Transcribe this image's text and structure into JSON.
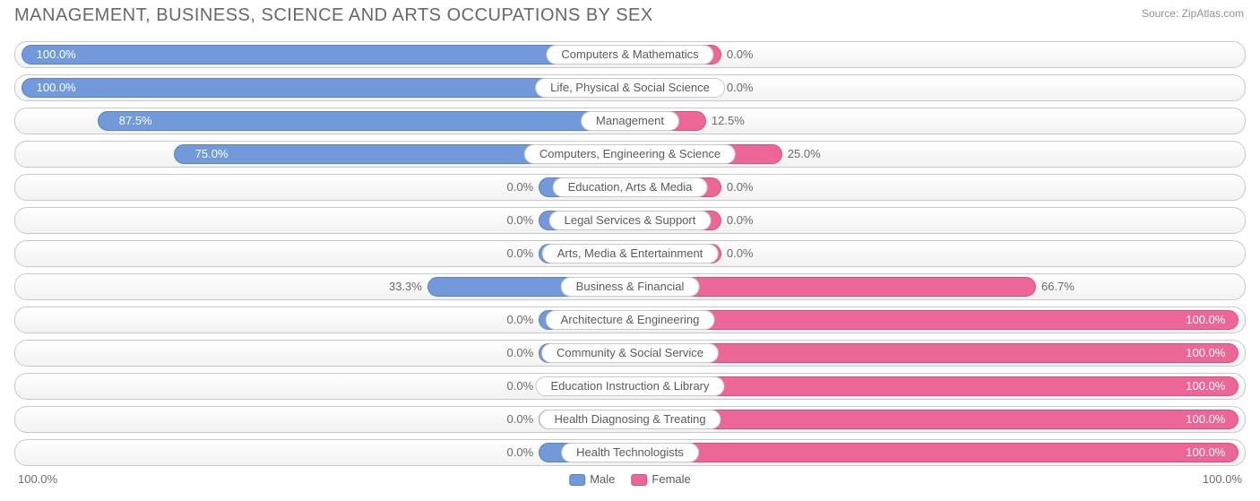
{
  "title": "MANAGEMENT, BUSINESS, SCIENCE AND ARTS OCCUPATIONS BY SEX",
  "source": "Source: ZipAtlas.com",
  "chart": {
    "type": "diverging-bar",
    "male_color": "#7299d9",
    "male_border": "#5a82c4",
    "female_color": "#ec6697",
    "female_border": "#d94e82",
    "row_bg_top": "#ffffff",
    "row_bg_bottom": "#f2f2f2",
    "row_border": "#c9c9c9",
    "text_color": "#6a6a6a",
    "zero_bar_percent": 15,
    "label_fontsize": 13,
    "title_fontsize": 20,
    "title_color": "#686868",
    "rows": [
      {
        "category": "Computers & Mathematics",
        "male": 100.0,
        "female": 0.0,
        "male_label": "100.0%",
        "female_label": "0.0%"
      },
      {
        "category": "Life, Physical & Social Science",
        "male": 100.0,
        "female": 0.0,
        "male_label": "100.0%",
        "female_label": "0.0%"
      },
      {
        "category": "Management",
        "male": 87.5,
        "female": 12.5,
        "male_label": "87.5%",
        "female_label": "12.5%"
      },
      {
        "category": "Computers, Engineering & Science",
        "male": 75.0,
        "female": 25.0,
        "male_label": "75.0%",
        "female_label": "25.0%"
      },
      {
        "category": "Education, Arts & Media",
        "male": 0.0,
        "female": 0.0,
        "male_label": "0.0%",
        "female_label": "0.0%"
      },
      {
        "category": "Legal Services & Support",
        "male": 0.0,
        "female": 0.0,
        "male_label": "0.0%",
        "female_label": "0.0%"
      },
      {
        "category": "Arts, Media & Entertainment",
        "male": 0.0,
        "female": 0.0,
        "male_label": "0.0%",
        "female_label": "0.0%"
      },
      {
        "category": "Business & Financial",
        "male": 33.3,
        "female": 66.7,
        "male_label": "33.3%",
        "female_label": "66.7%"
      },
      {
        "category": "Architecture & Engineering",
        "male": 0.0,
        "female": 100.0,
        "male_label": "0.0%",
        "female_label": "100.0%"
      },
      {
        "category": "Community & Social Service",
        "male": 0.0,
        "female": 100.0,
        "male_label": "0.0%",
        "female_label": "100.0%"
      },
      {
        "category": "Education Instruction & Library",
        "male": 0.0,
        "female": 100.0,
        "male_label": "0.0%",
        "female_label": "100.0%"
      },
      {
        "category": "Health Diagnosing & Treating",
        "male": 0.0,
        "female": 100.0,
        "male_label": "0.0%",
        "female_label": "100.0%"
      },
      {
        "category": "Health Technologists",
        "male": 0.0,
        "female": 100.0,
        "male_label": "0.0%",
        "female_label": "100.0%"
      }
    ],
    "axis": {
      "left": "100.0%",
      "right": "100.0%"
    },
    "legend": {
      "male": "Male",
      "female": "Female"
    }
  }
}
